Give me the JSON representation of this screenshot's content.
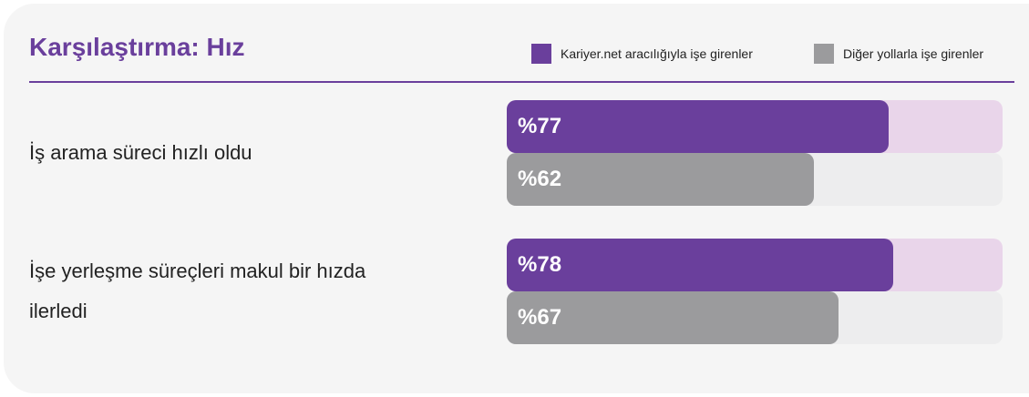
{
  "chart_data": {
    "type": "hbar",
    "title": "Karşılaştırma: Hız",
    "categories": [
      "İş arama süreci hızlı oldu",
      "İşe yerleşme süreçleri makul bir hızda ilerledi"
    ],
    "series": [
      {
        "name": "Kariyer.net aracılığıyla işe girenler",
        "color": "#6a3f9c",
        "track_color": "#e9d5ea",
        "values": [
          77,
          78
        ],
        "value_labels": [
          "%77",
          "%78"
        ]
      },
      {
        "name": "Diğer yollarla işe girenler",
        "color": "#9b9b9d",
        "track_color": "#ededee",
        "values": [
          62,
          67
        ],
        "value_labels": [
          "%62",
          "%67"
        ]
      }
    ],
    "xlim": [
      0,
      100
    ]
  }
}
